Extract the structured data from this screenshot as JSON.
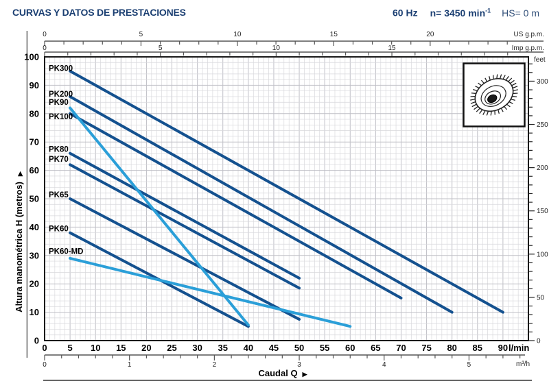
{
  "header": {
    "title": "CURVAS Y DATOS DE PRESTACIONES",
    "frequency": "60 Hz",
    "speed_value": "n= 3450 min",
    "speed_exponent": "-1",
    "suction_head": "HS= 0 m"
  },
  "chart_data": {
    "type": "line",
    "title": "CURVAS Y DATOS DE PRESTACIONES",
    "xlabel": "Caudal Q",
    "ylabel": "Altura manométrica H (metros)",
    "x_axis": {
      "unit": "l/min",
      "min": 0,
      "max": 95,
      "tick_step": 5,
      "tick_labels": [
        0,
        5,
        10,
        15,
        20,
        25,
        30,
        35,
        40,
        45,
        50,
        55,
        60,
        65,
        70,
        75,
        80,
        85,
        90
      ]
    },
    "y_axis": {
      "unit": "metros",
      "min": 0,
      "max": 100,
      "tick_step": 10,
      "tick_labels": [
        100,
        90,
        80,
        70,
        60,
        50,
        40,
        30,
        20,
        10,
        0
      ]
    },
    "secondary_axes": {
      "us_gpm": {
        "label": "US g.p.m.",
        "lpm_per_unit": 3.7854,
        "tick_labels": [
          0,
          5,
          10,
          15,
          20
        ],
        "minor_step": 1,
        "minor_max": 24
      },
      "imp_gpm": {
        "label": "Imp g.p.m.",
        "lpm_per_unit": 4.5461,
        "tick_labels": [
          0,
          5,
          10,
          15
        ],
        "minor_step": 1,
        "minor_max": 20
      },
      "m3h": {
        "label": "m³/h",
        "lpm_per_unit": 16.667,
        "tick_labels": [
          0,
          1,
          2,
          3,
          4,
          5
        ],
        "minor_step": 0.2,
        "minor_max": 5.6
      },
      "feet": {
        "label": "feet",
        "m_per_unit": 0.3048,
        "tick_labels": [
          0,
          50,
          100,
          150,
          200,
          250,
          300
        ],
        "minor_step": 10,
        "minor_max": 320
      }
    },
    "grid": true,
    "legend_position": "labels-on-plot",
    "colors": {
      "dark": "#14518f",
      "light": "#2b9fd8"
    },
    "series": [
      {
        "name": "PK300",
        "color": "dark",
        "points": [
          [
            5,
            95
          ],
          [
            90,
            10
          ]
        ],
        "label_h": 96
      },
      {
        "name": "PK200",
        "color": "dark",
        "points": [
          [
            5,
            86
          ],
          [
            80,
            10
          ]
        ],
        "label_h": 87
      },
      {
        "name": "PK100",
        "color": "dark",
        "points": [
          [
            5,
            80
          ],
          [
            70,
            15
          ]
        ],
        "label_h": 79
      },
      {
        "name": "PK80",
        "color": "dark",
        "points": [
          [
            5,
            66
          ],
          [
            50,
            22
          ]
        ],
        "label_h": 67.5
      },
      {
        "name": "PK70",
        "color": "dark",
        "points": [
          [
            5,
            62
          ],
          [
            50,
            18.5
          ]
        ],
        "label_h": 64
      },
      {
        "name": "PK65",
        "color": "dark",
        "points": [
          [
            5,
            50
          ],
          [
            50,
            7.5
          ]
        ],
        "label_h": 51.5
      },
      {
        "name": "PK60",
        "color": "dark",
        "points": [
          [
            5,
            38
          ],
          [
            40,
            5
          ]
        ],
        "label_h": 39.5
      },
      {
        "name": "PK90",
        "color": "light",
        "points": [
          [
            5,
            82
          ],
          [
            40,
            5.5
          ]
        ],
        "label_h": 84
      },
      {
        "name": "PK60-MD",
        "color": "light",
        "points": [
          [
            5,
            29
          ],
          [
            60,
            5
          ]
        ],
        "label_h": 31.5
      }
    ]
  }
}
